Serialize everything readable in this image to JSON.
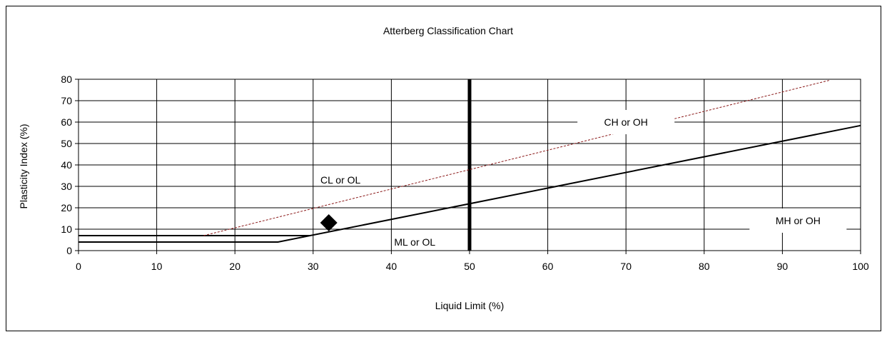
{
  "chart_data": {
    "type": "line",
    "title": "Atterberg Classification Chart",
    "xlabel": "Liquid Limit (%)",
    "ylabel": "Plasticity Index (%)",
    "xlim": [
      0,
      100
    ],
    "ylim": [
      0,
      80
    ],
    "xticks": [
      0,
      10,
      20,
      30,
      40,
      50,
      60,
      70,
      80,
      90,
      100
    ],
    "yticks": [
      0,
      10,
      20,
      30,
      40,
      50,
      60,
      70,
      80
    ],
    "grid": true,
    "series": [
      {
        "type": "scatter",
        "marker": "diamond",
        "color": "#000000",
        "points": [
          [
            32,
            13
          ]
        ]
      },
      {
        "type": "line",
        "color": "#000000",
        "width": 2,
        "points": [
          [
            0,
            4
          ],
          [
            25.5,
            4
          ],
          [
            100,
            58.4
          ]
        ]
      },
      {
        "type": "line",
        "color": "#000000",
        "width": 2,
        "points": [
          [
            0,
            7
          ],
          [
            29.6,
            7
          ]
        ]
      },
      {
        "type": "line",
        "color": "#000000",
        "width": 5,
        "points": [
          [
            50,
            0
          ],
          [
            50,
            80
          ]
        ]
      },
      {
        "type": "line",
        "color": "#8b1a1a",
        "width": 1,
        "dash": "3,2",
        "points": [
          [
            16,
            7
          ],
          [
            96,
            79.5
          ]
        ]
      }
    ],
    "zone_labels": [
      {
        "text": "CH or OH",
        "x": 70,
        "y": 60,
        "boxed": true
      },
      {
        "text": "CL or OL",
        "x": 33.5,
        "y": 33,
        "boxed": false
      },
      {
        "text": "ML or OL",
        "x": 43,
        "y": 4,
        "boxed": false
      },
      {
        "text": "MH or OH",
        "x": 92,
        "y": 14,
        "boxed": true
      }
    ]
  }
}
